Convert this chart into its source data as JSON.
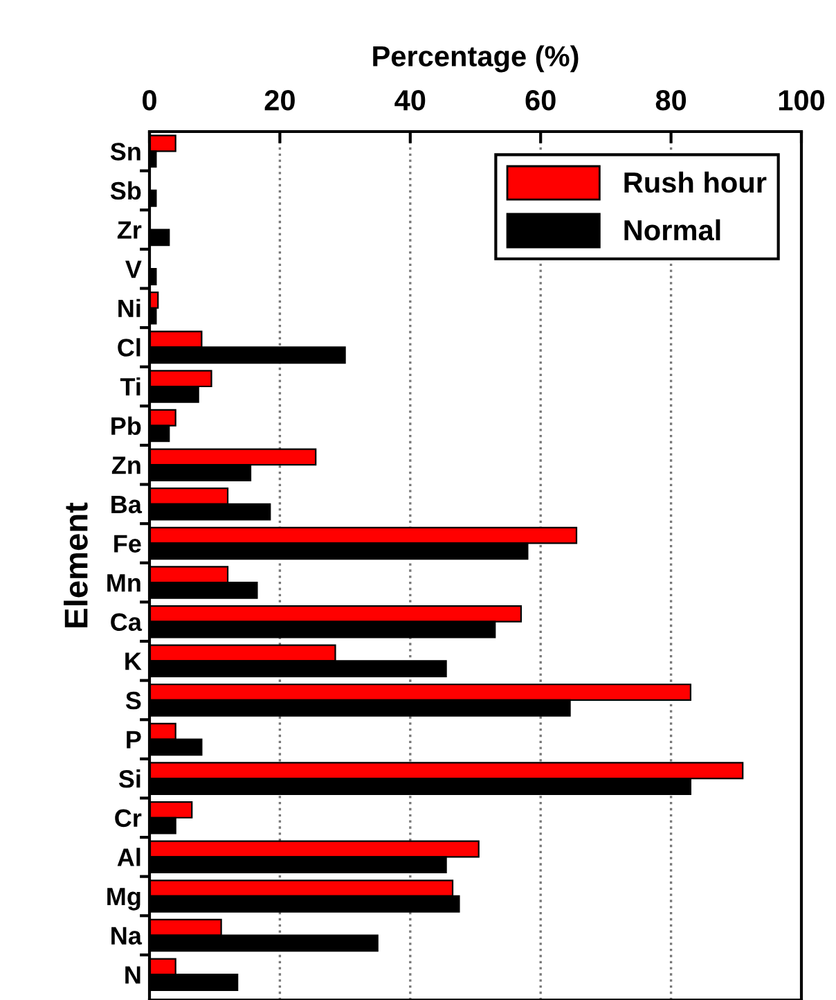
{
  "chart_data": {
    "type": "bar",
    "orientation": "horizontal",
    "xlabel": "Percentage (%)",
    "ylabel": "Element",
    "categories": [
      "Sn",
      "Sb",
      "Zr",
      "V",
      "Ni",
      "Cl",
      "Ti",
      "Pb",
      "Zn",
      "Ba",
      "Fe",
      "Mn",
      "Ca",
      "K",
      "S",
      "P",
      "Si",
      "Cr",
      "Al",
      "Mg",
      "Na",
      "N"
    ],
    "series": [
      {
        "name": "Rush hour",
        "color": "#ff0000",
        "values": [
          4,
          null,
          null,
          null,
          1.3,
          8,
          9.5,
          4,
          25.5,
          12,
          65.5,
          12,
          57,
          28.5,
          83,
          4,
          91,
          6.5,
          50.5,
          46.5,
          11,
          4
        ]
      },
      {
        "name": "Normal",
        "color": "#000000",
        "values": [
          1,
          1,
          3,
          1,
          1,
          30,
          7.5,
          3,
          15.5,
          18.5,
          58,
          16.5,
          53,
          45.5,
          64.5,
          8,
          83,
          4,
          45.5,
          47.5,
          35,
          13.5
        ]
      }
    ],
    "xlim": [
      0,
      100
    ],
    "xticks": [
      0,
      20,
      40,
      60,
      80,
      100
    ],
    "grid": "x",
    "legend": "top right"
  }
}
